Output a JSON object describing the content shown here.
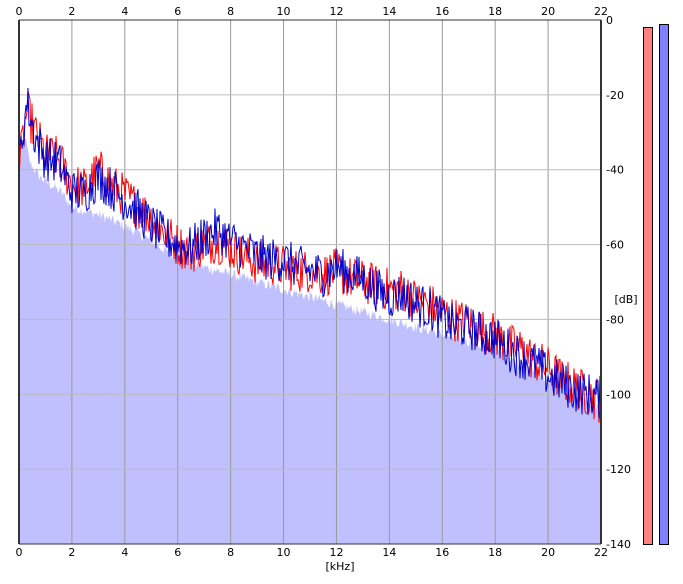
{
  "chart_data": {
    "type": "area",
    "xlabel": "[kHz]",
    "ylabel": "[dB]",
    "xlim": [
      0,
      22
    ],
    "ylim": [
      -140,
      0
    ],
    "x_ticks": [
      "0",
      "2",
      "4",
      "6",
      "8",
      "10",
      "12",
      "14",
      "16",
      "18",
      "20",
      "22"
    ],
    "y_ticks": [
      "0",
      "-20",
      "-40",
      "-60",
      "-80",
      "-100",
      "-120",
      "-140"
    ],
    "grid": true,
    "series": [
      {
        "color": "#ff0000",
        "x": [
          0,
          0.3,
          0.6,
          1.0,
          1.5,
          2.0,
          2.5,
          3.0,
          3.5,
          4.0,
          4.5,
          5.0,
          5.5,
          6.0,
          6.5,
          7.0,
          7.5,
          8.0,
          8.5,
          9.0,
          9.5,
          10.0,
          10.5,
          11.0,
          11.5,
          12.0,
          12.5,
          13.0,
          13.5,
          14.0,
          14.5,
          15.0,
          15.5,
          16.0,
          16.5,
          17.0,
          17.5,
          18.0,
          18.5,
          19.0,
          19.5,
          20.0,
          20.5,
          21.0,
          21.5,
          22.0
        ],
        "values": [
          -40,
          -24,
          -30,
          -36,
          -37,
          -44,
          -45,
          -40,
          -44,
          -47,
          -50,
          -53,
          -57,
          -60,
          -62,
          -60,
          -59,
          -61,
          -63,
          -65,
          -65,
          -66,
          -67,
          -67,
          -68,
          -67,
          -69,
          -70,
          -71,
          -72,
          -72,
          -75,
          -76,
          -78,
          -80,
          -81,
          -83,
          -84,
          -87,
          -88,
          -91,
          -93,
          -96,
          -98,
          -100,
          -102
        ]
      },
      {
        "color": "#0000cc",
        "x": [
          0,
          0.3,
          0.6,
          1.0,
          1.5,
          2.0,
          2.5,
          3.0,
          3.5,
          4.0,
          4.5,
          5.0,
          5.5,
          6.0,
          6.5,
          7.0,
          7.5,
          8.0,
          8.5,
          9.0,
          9.5,
          10.0,
          10.5,
          11.0,
          11.5,
          12.0,
          12.5,
          13.0,
          13.5,
          14.0,
          14.5,
          15.0,
          15.5,
          16.0,
          16.5,
          17.0,
          17.5,
          18.0,
          18.5,
          19.0,
          19.5,
          20.0,
          20.5,
          21.0,
          21.5,
          22.0
        ],
        "values": [
          -38,
          -22,
          -31,
          -37,
          -38,
          -46,
          -46,
          -42,
          -45,
          -48,
          -51,
          -55,
          -58,
          -60,
          -61,
          -58,
          -56,
          -59,
          -61,
          -63,
          -64,
          -64,
          -66,
          -67,
          -68,
          -66,
          -68,
          -69,
          -72,
          -74,
          -73,
          -76,
          -77,
          -80,
          -82,
          -82,
          -84,
          -85,
          -88,
          -90,
          -92,
          -95,
          -97,
          -99,
          -100,
          -101
        ]
      }
    ],
    "fill": {
      "color": "#c0c0ff",
      "x": [
        0,
        0.2,
        0.4,
        0.8,
        1.2,
        1.6,
        2.0,
        3.0,
        4.0,
        5.0,
        6.0,
        7.0,
        8.0,
        9.0,
        10.0,
        11.0,
        12.0,
        13.0,
        14.0,
        15.0,
        16.0,
        17.0,
        18.0,
        19.0,
        20.0,
        21.0,
        22.0
      ],
      "values": [
        -42,
        -30,
        -38,
        -42,
        -44,
        -46,
        -50,
        -52,
        -55,
        -59,
        -64,
        -66,
        -68,
        -70,
        -72,
        -74,
        -76,
        -78,
        -80,
        -82,
        -84,
        -86,
        -88,
        -92,
        -96,
        -100,
        -104
      ]
    },
    "meters": [
      {
        "color": "#ff8080",
        "value": -2
      },
      {
        "color": "#8080ff",
        "value": -1
      }
    ]
  }
}
